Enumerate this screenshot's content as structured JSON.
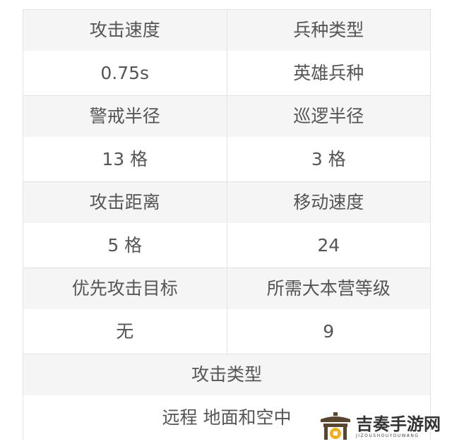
{
  "rows": [
    {
      "h": [
        "攻击速度",
        "兵种类型"
      ],
      "v": [
        "0.75s",
        "英雄兵种"
      ]
    },
    {
      "h": [
        "警戒半径",
        "巡逻半径"
      ],
      "v": [
        "13 格",
        "3 格"
      ]
    },
    {
      "h": [
        "攻击距离",
        "移动速度"
      ],
      "v": [
        "5 格",
        "24"
      ]
    },
    {
      "h": [
        "优先攻击目标",
        "所需大本营等级"
      ],
      "v": [
        "无",
        "9"
      ]
    }
  ],
  "last": {
    "h": "攻击类型",
    "v": "远程 地面和空中"
  },
  "watermark": {
    "cn": "吉奏手游网",
    "en": "JIZOUSHOUYOUWANG",
    "color": "#5a4630",
    "accent": "#f0b020"
  }
}
